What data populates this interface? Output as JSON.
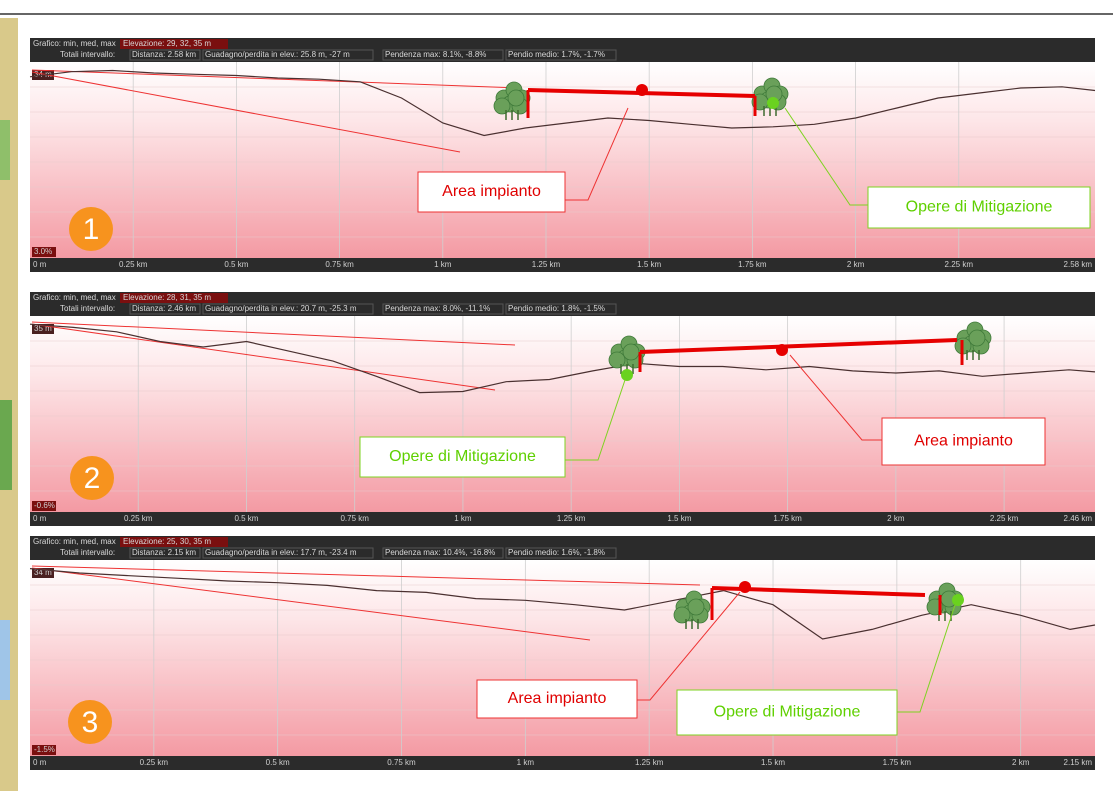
{
  "panels": [
    {
      "chart_label": "Grafico: min, med, max",
      "elevation": "Elevazione: 29, 32, 35 m",
      "totals_label": "Totali intervallo:",
      "distance": "Distanza: 2.58 km",
      "gain_loss": "Guadagno/perdita in elev.: 25.8 m, -27 m",
      "max_slope": "Pendenza max: 8.1%, -8.8%",
      "avg_slope": "Pendio medio: 1.7%, -1.7%",
      "y_top_label": "34 m",
      "y_bottom_label": "3.0%",
      "ylim": [
        29,
        35
      ],
      "xlim": [
        0,
        2.58
      ],
      "xticks": [
        {
          "value": 0,
          "label": "0 m"
        },
        {
          "value": 0.25,
          "label": "0.25 km"
        },
        {
          "value": 0.5,
          "label": "0.5 km"
        },
        {
          "value": 0.75,
          "label": "0.75 km"
        },
        {
          "value": 1,
          "label": "1 km"
        },
        {
          "value": 1.25,
          "label": "1.25 km"
        },
        {
          "value": 1.5,
          "label": "1.5 km"
        },
        {
          "value": 1.75,
          "label": "1.75 km"
        },
        {
          "value": 2,
          "label": "2 km"
        },
        {
          "value": 2.25,
          "label": "2.25 km"
        },
        {
          "value": 2.58,
          "label": "2.58 km"
        }
      ],
      "profile_x": [
        0,
        0.1,
        0.2,
        0.3,
        0.4,
        0.5,
        0.6,
        0.7,
        0.8,
        0.9,
        1.0,
        1.1,
        1.2,
        1.3,
        1.4,
        1.5,
        1.6,
        1.7,
        1.8,
        1.9,
        2.0,
        2.1,
        2.2,
        2.3,
        2.4,
        2.5,
        2.58
      ],
      "profile_elevation": [
        34.3,
        34.7,
        34.8,
        34.6,
        34.5,
        34.4,
        34.2,
        34.1,
        33.9,
        32.6,
        30.6,
        29.6,
        30.2,
        30.6,
        31.0,
        30.8,
        30.5,
        30.2,
        30.3,
        30.5,
        31.0,
        31.8,
        32.6,
        33.0,
        33.4,
        33.5,
        33.2
      ],
      "area_label": "Area impianto",
      "mitigation_label": "Opere di Mitigazione",
      "badge": "1"
    },
    {
      "chart_label": "Grafico: min, med, max",
      "elevation": "Elevazione: 28, 31, 35 m",
      "totals_label": "Totali intervallo:",
      "distance": "Distanza: 2.46 km",
      "gain_loss": "Guadagno/perdita in elev.: 20.7 m, -25.3 m",
      "max_slope": "Pendenza max: 8.0%, -11.1%",
      "avg_slope": "Pendio medio: 1.8%, -1.5%",
      "y_top_label": "35 m",
      "y_bottom_label": "-0.6%",
      "ylim": [
        28,
        35
      ],
      "xlim": [
        0,
        2.46
      ],
      "xticks": [
        {
          "value": 0,
          "label": "0 m"
        },
        {
          "value": 0.25,
          "label": "0.25 km"
        },
        {
          "value": 0.5,
          "label": "0.5 km"
        },
        {
          "value": 0.75,
          "label": "0.75 km"
        },
        {
          "value": 1,
          "label": "1 km"
        },
        {
          "value": 1.25,
          "label": "1.25 km"
        },
        {
          "value": 1.5,
          "label": "1.5 km"
        },
        {
          "value": 1.75,
          "label": "1.75 km"
        },
        {
          "value": 2,
          "label": "2 km"
        },
        {
          "value": 2.25,
          "label": "2.25 km"
        },
        {
          "value": 2.46,
          "label": "2.46 km"
        }
      ],
      "profile_x": [
        0,
        0.1,
        0.2,
        0.3,
        0.4,
        0.5,
        0.6,
        0.7,
        0.8,
        0.9,
        1.0,
        1.1,
        1.2,
        1.3,
        1.4,
        1.5,
        1.6,
        1.7,
        1.8,
        1.9,
        2.0,
        2.1,
        2.2,
        2.3,
        2.4,
        2.46
      ],
      "profile_elevation": [
        34.8,
        34.5,
        34.1,
        33.2,
        32.7,
        33.2,
        32.3,
        31.4,
        30.0,
        28.5,
        28.6,
        29.5,
        29.7,
        30.5,
        31.2,
        30.9,
        30.9,
        30.6,
        30.9,
        30.5,
        30.3,
        30.5,
        30.0,
        30.3,
        30.6,
        30.4
      ],
      "area_label": "Area impianto",
      "mitigation_label": "Opere di Mitigazione",
      "badge": "2"
    },
    {
      "chart_label": "Grafico: min, med, max",
      "elevation": "Elevazione: 25, 30, 35 m",
      "totals_label": "Totali intervallo:",
      "distance": "Distanza: 2.15 km",
      "gain_loss": "Guadagno/perdita in elev.: 17.7 m, -23.4 m",
      "max_slope": "Pendenza max: 10.4%, -16.8%",
      "avg_slope": "Pendio medio: 1.6%, -1.8%",
      "y_top_label": "34 m",
      "y_bottom_label": "-1.5%",
      "ylim": [
        25,
        35
      ],
      "xlim": [
        0,
        2.15
      ],
      "xticks": [
        {
          "value": 0,
          "label": "0 m"
        },
        {
          "value": 0.25,
          "label": "0.25 km"
        },
        {
          "value": 0.5,
          "label": "0.5 km"
        },
        {
          "value": 0.75,
          "label": "0.75 km"
        },
        {
          "value": 1,
          "label": "1 km"
        },
        {
          "value": 1.25,
          "label": "1.25 km"
        },
        {
          "value": 1.5,
          "label": "1.5 km"
        },
        {
          "value": 1.75,
          "label": "1.75 km"
        },
        {
          "value": 2,
          "label": "2 km"
        },
        {
          "value": 2.15,
          "label": "2.15 km"
        }
      ],
      "profile_x": [
        0,
        0.1,
        0.2,
        0.3,
        0.4,
        0.5,
        0.6,
        0.7,
        0.8,
        0.9,
        1.0,
        1.1,
        1.2,
        1.3,
        1.4,
        1.5,
        1.6,
        1.7,
        1.8,
        1.9,
        2.0,
        2.1,
        2.15
      ],
      "profile_elevation": [
        34.7,
        34.2,
        33.9,
        33.6,
        33.3,
        33.1,
        32.8,
        32.2,
        32.0,
        31.3,
        31.1,
        30.6,
        30.0,
        31.1,
        32.2,
        30.6,
        26.7,
        27.8,
        29.4,
        30.6,
        29.4,
        27.8,
        28.3
      ],
      "area_label": "Area impianto",
      "mitigation_label": "Opere di Mitigazione",
      "badge": "3"
    }
  ]
}
